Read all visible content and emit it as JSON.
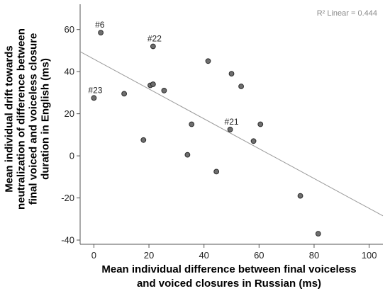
{
  "chart_data": {
    "type": "scatter",
    "xlabel_lines": [
      "Mean individual difference between final voiceless",
      "and voiced closures in Russian (ms)"
    ],
    "ylabel_lines": [
      "Mean individual drift towards",
      "neutralization of difference between",
      "final voiced and voiceless closure",
      "duration in English (ms)"
    ],
    "xlim": [
      -5,
      105
    ],
    "ylim": [
      -42,
      72
    ],
    "x_ticks": [
      0,
      20,
      40,
      60,
      80,
      100
    ],
    "y_ticks": [
      -40,
      -20,
      0,
      20,
      40,
      60
    ],
    "points": [
      {
        "x": 2.5,
        "y": 58.5
      },
      {
        "x": 21.5,
        "y": 52
      },
      {
        "x": 0,
        "y": 27.5
      },
      {
        "x": 11,
        "y": 29.5
      },
      {
        "x": 20.5,
        "y": 33.5
      },
      {
        "x": 21.5,
        "y": 34
      },
      {
        "x": 25.5,
        "y": 31
      },
      {
        "x": 41.5,
        "y": 45
      },
      {
        "x": 50,
        "y": 39
      },
      {
        "x": 53.5,
        "y": 33
      },
      {
        "x": 35.5,
        "y": 15
      },
      {
        "x": 49.5,
        "y": 12.5
      },
      {
        "x": 60.5,
        "y": 15
      },
      {
        "x": 58,
        "y": 7
      },
      {
        "x": 18,
        "y": 7.5
      },
      {
        "x": 34,
        "y": 0.5
      },
      {
        "x": 44.5,
        "y": -7.5
      },
      {
        "x": 75,
        "y": -19
      },
      {
        "x": 81.5,
        "y": -37
      }
    ],
    "annotations": [
      {
        "text": "#6",
        "x": 2.5,
        "y": 58.5
      },
      {
        "text": "#22",
        "x": 21.5,
        "y": 52
      },
      {
        "text": "#23",
        "x": 0,
        "y": 27.5
      },
      {
        "text": "#21",
        "x": 49.5,
        "y": 12.5
      }
    ],
    "fit_line": {
      "x": [
        -5,
        105
      ],
      "y": [
        49.5,
        -28.5
      ]
    },
    "r2_label": "R² Linear = 0.444",
    "colors": {
      "point": "#6e6e6e",
      "point_stroke": "#2b2b2b",
      "fit": "#9a9a9a",
      "axis": "#555555"
    }
  }
}
